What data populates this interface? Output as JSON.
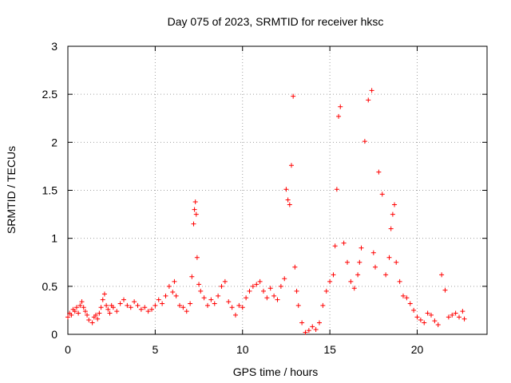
{
  "chart_data": {
    "type": "scatter",
    "title": "Day 075 of 2023, SRMTID for receiver hksc",
    "xlabel": "GPS time / hours",
    "ylabel": "SRMTID / TECUs",
    "xlim": [
      0,
      24
    ],
    "ylim": [
      0,
      3
    ],
    "x_ticks": [
      0,
      5,
      10,
      15,
      20
    ],
    "x_tick_labels": [
      "0",
      "5",
      "10",
      "15",
      "20"
    ],
    "y_ticks": [
      0,
      0.5,
      1,
      1.5,
      2,
      2.5,
      3
    ],
    "y_tick_labels": [
      "0",
      "0.5",
      "1",
      "1.5",
      "2",
      "2.5",
      "3"
    ],
    "grid": true,
    "marker": "+",
    "color": "#ff0000",
    "series": [
      {
        "name": "SRMTID",
        "x": [
          0.0,
          0.1,
          0.2,
          0.3,
          0.4,
          0.5,
          0.6,
          0.7,
          0.8,
          0.9,
          1.0,
          1.1,
          1.2,
          1.4,
          1.5,
          1.6,
          1.7,
          1.8,
          1.9,
          2.0,
          2.1,
          2.2,
          2.3,
          2.4,
          2.5,
          2.6,
          2.8,
          3.0,
          3.2,
          3.4,
          3.6,
          3.8,
          4.0,
          4.2,
          4.4,
          4.6,
          4.8,
          5.0,
          5.2,
          5.4,
          5.6,
          5.8,
          6.0,
          6.1,
          6.2,
          6.4,
          6.6,
          6.8,
          7.0,
          7.1,
          7.2,
          7.25,
          7.3,
          7.35,
          7.4,
          7.5,
          7.6,
          7.8,
          8.0,
          8.2,
          8.4,
          8.6,
          8.8,
          9.0,
          9.2,
          9.4,
          9.6,
          9.8,
          10.0,
          10.2,
          10.4,
          10.6,
          10.8,
          11.0,
          11.2,
          11.4,
          11.6,
          11.8,
          12.0,
          12.2,
          12.4,
          12.5,
          12.6,
          12.7,
          12.8,
          12.9,
          13.0,
          13.1,
          13.2,
          13.4,
          13.6,
          13.8,
          14.0,
          14.2,
          14.4,
          14.6,
          14.8,
          15.0,
          15.2,
          15.3,
          15.4,
          15.5,
          15.6,
          15.8,
          16.0,
          16.2,
          16.4,
          16.6,
          16.7,
          16.8,
          17.0,
          17.2,
          17.4,
          17.5,
          17.6,
          17.8,
          18.0,
          18.2,
          18.4,
          18.5,
          18.6,
          18.7,
          18.8,
          19.0,
          19.2,
          19.4,
          19.6,
          19.8,
          20.0,
          20.2,
          20.4,
          20.6,
          20.8,
          21.0,
          21.2,
          21.4,
          21.6,
          21.8,
          22.0,
          22.2,
          22.4,
          22.6,
          22.7
        ],
        "y": [
          0.18,
          0.22,
          0.2,
          0.26,
          0.24,
          0.28,
          0.22,
          0.3,
          0.34,
          0.28,
          0.24,
          0.2,
          0.15,
          0.12,
          0.18,
          0.2,
          0.16,
          0.22,
          0.28,
          0.36,
          0.42,
          0.3,
          0.26,
          0.22,
          0.3,
          0.28,
          0.24,
          0.32,
          0.36,
          0.3,
          0.28,
          0.34,
          0.3,
          0.26,
          0.28,
          0.24,
          0.26,
          0.3,
          0.36,
          0.32,
          0.4,
          0.5,
          0.44,
          0.55,
          0.4,
          0.3,
          0.28,
          0.24,
          0.32,
          0.6,
          1.15,
          1.3,
          1.38,
          1.25,
          0.8,
          0.52,
          0.45,
          0.38,
          0.3,
          0.36,
          0.32,
          0.4,
          0.5,
          0.55,
          0.34,
          0.28,
          0.2,
          0.3,
          0.28,
          0.38,
          0.45,
          0.5,
          0.52,
          0.55,
          0.45,
          0.38,
          0.48,
          0.4,
          0.36,
          0.5,
          0.58,
          1.51,
          1.4,
          1.35,
          1.76,
          2.48,
          0.7,
          0.45,
          0.3,
          0.12,
          0.02,
          0.04,
          0.08,
          0.05,
          0.12,
          0.3,
          0.45,
          0.55,
          0.62,
          0.92,
          1.51,
          2.27,
          2.37,
          0.95,
          0.75,
          0.55,
          0.48,
          0.62,
          0.75,
          0.9,
          2.01,
          2.44,
          2.54,
          0.85,
          0.7,
          1.69,
          1.46,
          0.62,
          0.8,
          1.1,
          1.25,
          1.35,
          0.75,
          0.55,
          0.4,
          0.38,
          0.32,
          0.25,
          0.18,
          0.15,
          0.12,
          0.22,
          0.2,
          0.14,
          0.1,
          0.62,
          0.46,
          0.18,
          0.2,
          0.22,
          0.18,
          0.24,
          0.16
        ]
      }
    ]
  }
}
